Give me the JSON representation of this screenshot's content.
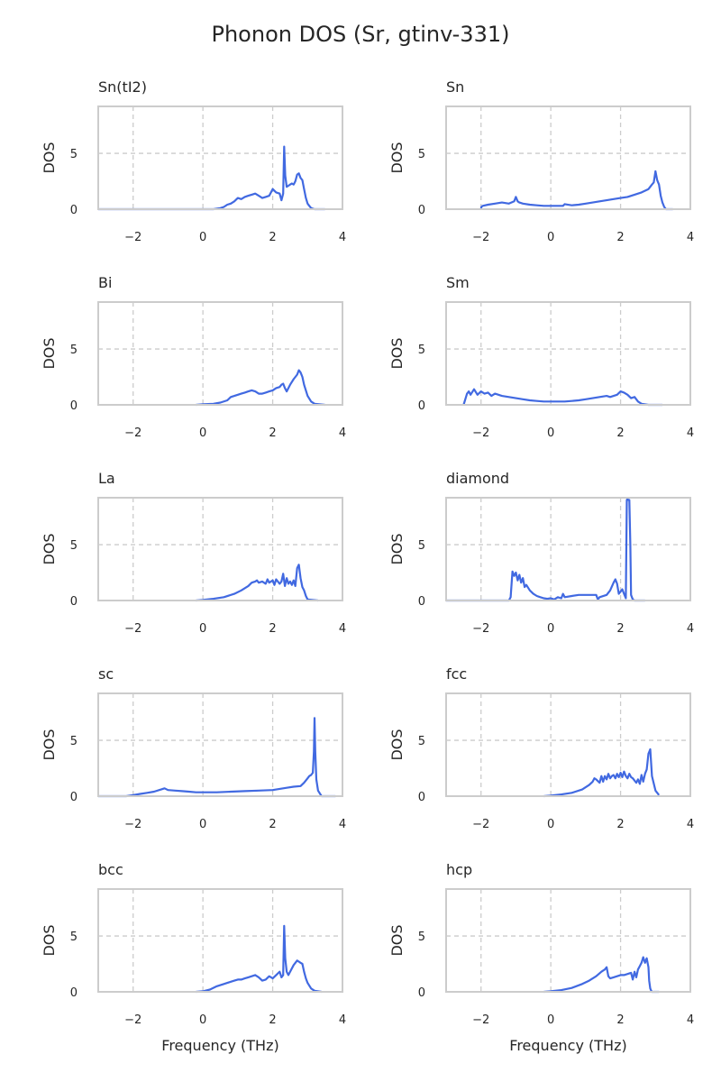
{
  "figure": {
    "title": "Phonon DOS (Sr, gtinv-331)",
    "line_color": "#4169e1"
  },
  "chart_data": [
    {
      "type": "line",
      "title": "Sn(tI2)",
      "xlabel": "",
      "ylabel": "DOS",
      "xlim": [
        -3,
        4
      ],
      "ylim": [
        0,
        9.2
      ],
      "xticks": [
        "−2",
        "0",
        "2",
        "4"
      ],
      "yticks": [
        "0",
        "5"
      ],
      "grid": true,
      "x": [
        -3,
        -2,
        -1,
        0,
        0.3,
        0.5,
        0.6,
        0.7,
        0.8,
        0.9,
        1.0,
        1.1,
        1.2,
        1.3,
        1.4,
        1.5,
        1.6,
        1.7,
        1.8,
        1.9,
        2.0,
        2.1,
        2.2,
        2.25,
        2.3,
        2.33,
        2.36,
        2.4,
        2.45,
        2.5,
        2.55,
        2.6,
        2.65,
        2.7,
        2.75,
        2.8,
        2.85,
        2.9,
        2.95,
        3.0,
        3.05,
        3.1,
        3.2,
        3.3,
        3.5
      ],
      "y": [
        0,
        0,
        0,
        0,
        0,
        0.1,
        0.2,
        0.4,
        0.5,
        0.7,
        1.0,
        0.9,
        1.1,
        1.2,
        1.3,
        1.4,
        1.2,
        1.0,
        1.1,
        1.2,
        1.8,
        1.5,
        1.4,
        0.8,
        1.4,
        5.6,
        3.0,
        2.0,
        2.1,
        2.2,
        2.3,
        2.2,
        2.5,
        3.1,
        3.2,
        2.8,
        2.6,
        1.8,
        1.0,
        0.5,
        0.3,
        0.1,
        0,
        0,
        0
      ]
    },
    {
      "type": "line",
      "title": "Sn",
      "xlabel": "",
      "ylabel": "DOS",
      "xlim": [
        -3,
        4
      ],
      "ylim": [
        0,
        9.2
      ],
      "xticks": [
        "−2",
        "0",
        "2",
        "4"
      ],
      "yticks": [
        "0",
        "5"
      ],
      "grid": true,
      "x": [
        -2,
        -1.99,
        -1.95,
        -1.8,
        -1.6,
        -1.4,
        -1.2,
        -1.05,
        -1.0,
        -0.95,
        -0.9,
        -0.8,
        -0.6,
        -0.4,
        -0.2,
        0,
        0.2,
        0.35,
        0.4,
        0.6,
        0.8,
        1.0,
        1.2,
        1.4,
        1.6,
        1.8,
        2.0,
        2.2,
        2.4,
        2.6,
        2.8,
        2.9,
        2.95,
        3.0,
        3.05,
        3.1,
        3.15,
        3.2,
        3.25,
        3.3,
        3.5
      ],
      "y": [
        0,
        0.2,
        0.3,
        0.4,
        0.5,
        0.6,
        0.5,
        0.7,
        1.1,
        0.7,
        0.6,
        0.5,
        0.4,
        0.35,
        0.3,
        0.3,
        0.3,
        0.3,
        0.45,
        0.35,
        0.4,
        0.5,
        0.6,
        0.7,
        0.8,
        0.9,
        1.0,
        1.1,
        1.3,
        1.5,
        1.8,
        2.2,
        2.4,
        3.4,
        2.6,
        2.2,
        1.2,
        0.6,
        0.2,
        0,
        0
      ]
    },
    {
      "type": "line",
      "title": "Bi",
      "xlabel": "",
      "ylabel": "DOS",
      "xlim": [
        -3,
        4
      ],
      "ylim": [
        0,
        9.2
      ],
      "xticks": [
        "−2",
        "0",
        "2",
        "4"
      ],
      "yticks": [
        "0",
        "5"
      ],
      "grid": true,
      "x": [
        -0.2,
        0,
        0.3,
        0.5,
        0.7,
        0.8,
        0.9,
        1.0,
        1.1,
        1.2,
        1.3,
        1.4,
        1.5,
        1.6,
        1.7,
        1.8,
        1.9,
        2.0,
        2.1,
        2.2,
        2.25,
        2.3,
        2.35,
        2.4,
        2.5,
        2.6,
        2.7,
        2.75,
        2.8,
        2.85,
        2.9,
        3.0,
        3.1,
        3.2,
        3.5
      ],
      "y": [
        0,
        0.05,
        0.1,
        0.2,
        0.4,
        0.7,
        0.8,
        0.9,
        1.0,
        1.1,
        1.2,
        1.3,
        1.2,
        1.0,
        1.0,
        1.1,
        1.2,
        1.3,
        1.5,
        1.6,
        1.8,
        1.9,
        1.5,
        1.2,
        1.8,
        2.3,
        2.7,
        3.1,
        2.9,
        2.5,
        1.8,
        0.8,
        0.3,
        0.1,
        0
      ]
    },
    {
      "type": "line",
      "title": "Sm",
      "xlabel": "",
      "ylabel": "DOS",
      "xlim": [
        -3,
        4
      ],
      "ylim": [
        0,
        9.2
      ],
      "xticks": [
        "−2",
        "0",
        "2",
        "4"
      ],
      "yticks": [
        "0",
        "5"
      ],
      "grid": true,
      "x": [
        -2.5,
        -2.4,
        -2.35,
        -2.3,
        -2.2,
        -2.1,
        -2.0,
        -1.9,
        -1.8,
        -1.7,
        -1.6,
        -1.5,
        -1.4,
        -1.2,
        -1.0,
        -0.8,
        -0.6,
        -0.4,
        -0.2,
        0,
        0.2,
        0.4,
        0.6,
        0.8,
        1.0,
        1.2,
        1.4,
        1.6,
        1.7,
        1.8,
        1.9,
        2.0,
        2.1,
        2.2,
        2.3,
        2.4,
        2.5,
        2.6,
        2.8,
        3.2
      ],
      "y": [
        0,
        1.0,
        1.2,
        0.9,
        1.4,
        0.9,
        1.2,
        1.0,
        1.1,
        0.8,
        1.0,
        0.9,
        0.8,
        0.7,
        0.6,
        0.5,
        0.4,
        0.35,
        0.3,
        0.3,
        0.3,
        0.3,
        0.35,
        0.4,
        0.5,
        0.6,
        0.7,
        0.8,
        0.7,
        0.8,
        0.9,
        1.2,
        1.1,
        0.9,
        0.6,
        0.7,
        0.3,
        0.1,
        0,
        0
      ]
    },
    {
      "type": "line",
      "title": "La",
      "xlabel": "",
      "ylabel": "DOS",
      "xlim": [
        -3,
        4
      ],
      "ylim": [
        0,
        9.2
      ],
      "xticks": [
        "−2",
        "0",
        "2",
        "4"
      ],
      "yticks": [
        "0",
        "5"
      ],
      "grid": true,
      "x": [
        -0.2,
        0,
        0.3,
        0.6,
        0.9,
        1.1,
        1.3,
        1.4,
        1.5,
        1.55,
        1.6,
        1.7,
        1.8,
        1.85,
        1.9,
        2.0,
        2.05,
        2.1,
        2.2,
        2.25,
        2.3,
        2.35,
        2.4,
        2.45,
        2.5,
        2.55,
        2.6,
        2.65,
        2.7,
        2.75,
        2.8,
        2.85,
        2.9,
        2.95,
        3.0,
        3.3
      ],
      "y": [
        0,
        0.05,
        0.15,
        0.3,
        0.6,
        0.9,
        1.3,
        1.6,
        1.7,
        1.8,
        1.6,
        1.7,
        1.5,
        1.9,
        1.6,
        1.8,
        1.4,
        1.9,
        1.5,
        1.7,
        2.4,
        1.3,
        2.0,
        1.5,
        1.7,
        1.4,
        1.8,
        1.3,
        2.9,
        3.2,
        2.0,
        1.2,
        0.9,
        0.4,
        0.1,
        0
      ]
    },
    {
      "type": "line",
      "title": "diamond",
      "xlabel": "",
      "ylabel": "DOS",
      "xlim": [
        -3,
        4
      ],
      "ylim": [
        0,
        9.2
      ],
      "xticks": [
        "−2",
        "0",
        "2",
        "4"
      ],
      "yticks": [
        "0",
        "5"
      ],
      "grid": true,
      "x": [
        -3,
        -2,
        -1.5,
        -1.48,
        -1.2,
        -1.15,
        -1.1,
        -1.05,
        -1.0,
        -0.95,
        -0.9,
        -0.85,
        -0.8,
        -0.75,
        -0.7,
        -0.6,
        -0.5,
        -0.4,
        -0.3,
        -0.2,
        -0.1,
        0,
        0.1,
        0.2,
        0.3,
        0.35,
        0.4,
        0.6,
        0.8,
        1.0,
        1.2,
        1.3,
        1.35,
        1.4,
        1.6,
        1.7,
        1.8,
        1.85,
        1.9,
        1.95,
        2.0,
        2.05,
        2.1,
        2.15,
        2.18,
        2.2,
        2.22,
        2.25,
        2.28,
        2.3,
        2.35,
        2.4,
        2.7
      ],
      "y": [
        0,
        0,
        0,
        0,
        0,
        0.3,
        2.6,
        2.2,
        2.5,
        1.8,
        2.3,
        1.6,
        2.0,
        1.2,
        1.4,
        0.9,
        0.6,
        0.4,
        0.3,
        0.2,
        0.15,
        0.2,
        0.1,
        0.3,
        0.2,
        0.6,
        0.3,
        0.4,
        0.5,
        0.5,
        0.5,
        0.5,
        0.1,
        0.3,
        0.5,
        0.9,
        1.6,
        1.9,
        1.5,
        0.6,
        0.8,
        1.0,
        0.6,
        0.2,
        9.0,
        9.1,
        9.0,
        9.0,
        5.0,
        0.5,
        0.1,
        0,
        0
      ]
    },
    {
      "type": "line",
      "title": "sc",
      "xlabel": "",
      "ylabel": "DOS",
      "xlim": [
        -3,
        4
      ],
      "ylim": [
        0,
        9.2
      ],
      "xticks": [
        "−2",
        "0",
        "2",
        "4"
      ],
      "yticks": [
        "0",
        "5"
      ],
      "grid": true,
      "x": [
        -3,
        -2.4,
        -2.2,
        -2.0,
        -1.8,
        -1.6,
        -1.4,
        -1.2,
        -1.1,
        -1.0,
        -0.8,
        -0.6,
        -0.4,
        -0.2,
        0,
        0.4,
        0.8,
        1.2,
        1.6,
        2.0,
        2.2,
        2.4,
        2.6,
        2.8,
        2.9,
        3.0,
        3.05,
        3.1,
        3.15,
        3.18,
        3.2,
        3.22,
        3.25,
        3.3,
        3.4,
        3.8
      ],
      "y": [
        0,
        0,
        0,
        0.1,
        0.2,
        0.3,
        0.4,
        0.6,
        0.7,
        0.55,
        0.5,
        0.45,
        0.4,
        0.35,
        0.35,
        0.35,
        0.4,
        0.45,
        0.5,
        0.55,
        0.65,
        0.75,
        0.85,
        0.9,
        1.2,
        1.6,
        1.8,
        1.9,
        2.1,
        4.0,
        7.0,
        4.0,
        1.5,
        0.5,
        0,
        0
      ]
    },
    {
      "type": "line",
      "title": "fcc",
      "xlabel": "",
      "ylabel": "DOS",
      "xlim": [
        -3,
        4
      ],
      "ylim": [
        0,
        9.2
      ],
      "xticks": [
        "−2",
        "0",
        "2",
        "4"
      ],
      "yticks": [
        "0",
        "5"
      ],
      "grid": true,
      "x": [
        -0.2,
        0,
        0.3,
        0.6,
        0.9,
        1.1,
        1.2,
        1.25,
        1.3,
        1.4,
        1.45,
        1.5,
        1.55,
        1.6,
        1.65,
        1.7,
        1.75,
        1.8,
        1.85,
        1.9,
        1.95,
        2.0,
        2.05,
        2.1,
        2.15,
        2.2,
        2.25,
        2.3,
        2.35,
        2.4,
        2.45,
        2.5,
        2.55,
        2.6,
        2.65,
        2.7,
        2.75,
        2.8,
        2.85,
        2.9,
        3.0,
        3.1
      ],
      "y": [
        0,
        0.05,
        0.15,
        0.3,
        0.6,
        1.0,
        1.3,
        1.6,
        1.5,
        1.2,
        1.8,
        1.3,
        1.8,
        1.5,
        2.0,
        1.6,
        1.8,
        1.9,
        1.6,
        2.0,
        1.7,
        2.1,
        1.7,
        2.2,
        1.8,
        1.6,
        2.0,
        1.7,
        1.6,
        1.4,
        1.2,
        1.5,
        1.1,
        1.9,
        1.3,
        2.0,
        2.4,
        3.8,
        4.2,
        1.8,
        0.5,
        0.1
      ]
    },
    {
      "type": "line",
      "title": "bcc",
      "xlabel": "Frequency (THz)",
      "ylabel": "DOS",
      "xlim": [
        -3,
        4
      ],
      "ylim": [
        0,
        9.2
      ],
      "xticks": [
        "−2",
        "0",
        "2",
        "4"
      ],
      "yticks": [
        "0",
        "5"
      ],
      "grid": true,
      "x": [
        -0.2,
        0,
        0.2,
        0.4,
        0.6,
        0.7,
        0.8,
        0.9,
        1.0,
        1.1,
        1.2,
        1.3,
        1.4,
        1.5,
        1.6,
        1.7,
        1.8,
        1.9,
        2.0,
        2.1,
        2.2,
        2.25,
        2.3,
        2.33,
        2.36,
        2.4,
        2.45,
        2.5,
        2.6,
        2.7,
        2.75,
        2.8,
        2.85,
        2.9,
        2.95,
        3.0,
        3.1,
        3.2,
        3.4
      ],
      "y": [
        0,
        0.05,
        0.2,
        0.5,
        0.7,
        0.8,
        0.9,
        1.0,
        1.1,
        1.1,
        1.2,
        1.3,
        1.4,
        1.5,
        1.3,
        1.0,
        1.1,
        1.4,
        1.2,
        1.5,
        1.8,
        1.3,
        1.5,
        5.9,
        3.0,
        1.8,
        1.5,
        1.8,
        2.4,
        2.8,
        2.7,
        2.6,
        2.5,
        1.8,
        1.2,
        0.8,
        0.3,
        0.1,
        0
      ]
    },
    {
      "type": "line",
      "title": "hcp",
      "xlabel": "Frequency (THz)",
      "ylabel": "DOS",
      "xlim": [
        -3,
        4
      ],
      "ylim": [
        0,
        9.2
      ],
      "xticks": [
        "−2",
        "0",
        "2",
        "4"
      ],
      "yticks": [
        "0",
        "5"
      ],
      "grid": true,
      "x": [
        -0.2,
        0,
        0.3,
        0.6,
        0.9,
        1.1,
        1.3,
        1.45,
        1.55,
        1.6,
        1.65,
        1.7,
        1.8,
        1.9,
        2.0,
        2.1,
        2.2,
        2.3,
        2.35,
        2.4,
        2.45,
        2.5,
        2.55,
        2.6,
        2.65,
        2.7,
        2.75,
        2.8,
        2.82,
        2.85,
        2.88,
        2.9,
        3.0,
        3.1
      ],
      "y": [
        0,
        0.05,
        0.15,
        0.35,
        0.7,
        1.0,
        1.4,
        1.8,
        2.0,
        2.2,
        1.4,
        1.2,
        1.3,
        1.4,
        1.5,
        1.5,
        1.6,
        1.7,
        1.1,
        1.8,
        1.3,
        2.0,
        2.3,
        2.6,
        3.1,
        2.6,
        3.0,
        2.2,
        1.0,
        0.3,
        0.1,
        0,
        0,
        0
      ]
    }
  ]
}
